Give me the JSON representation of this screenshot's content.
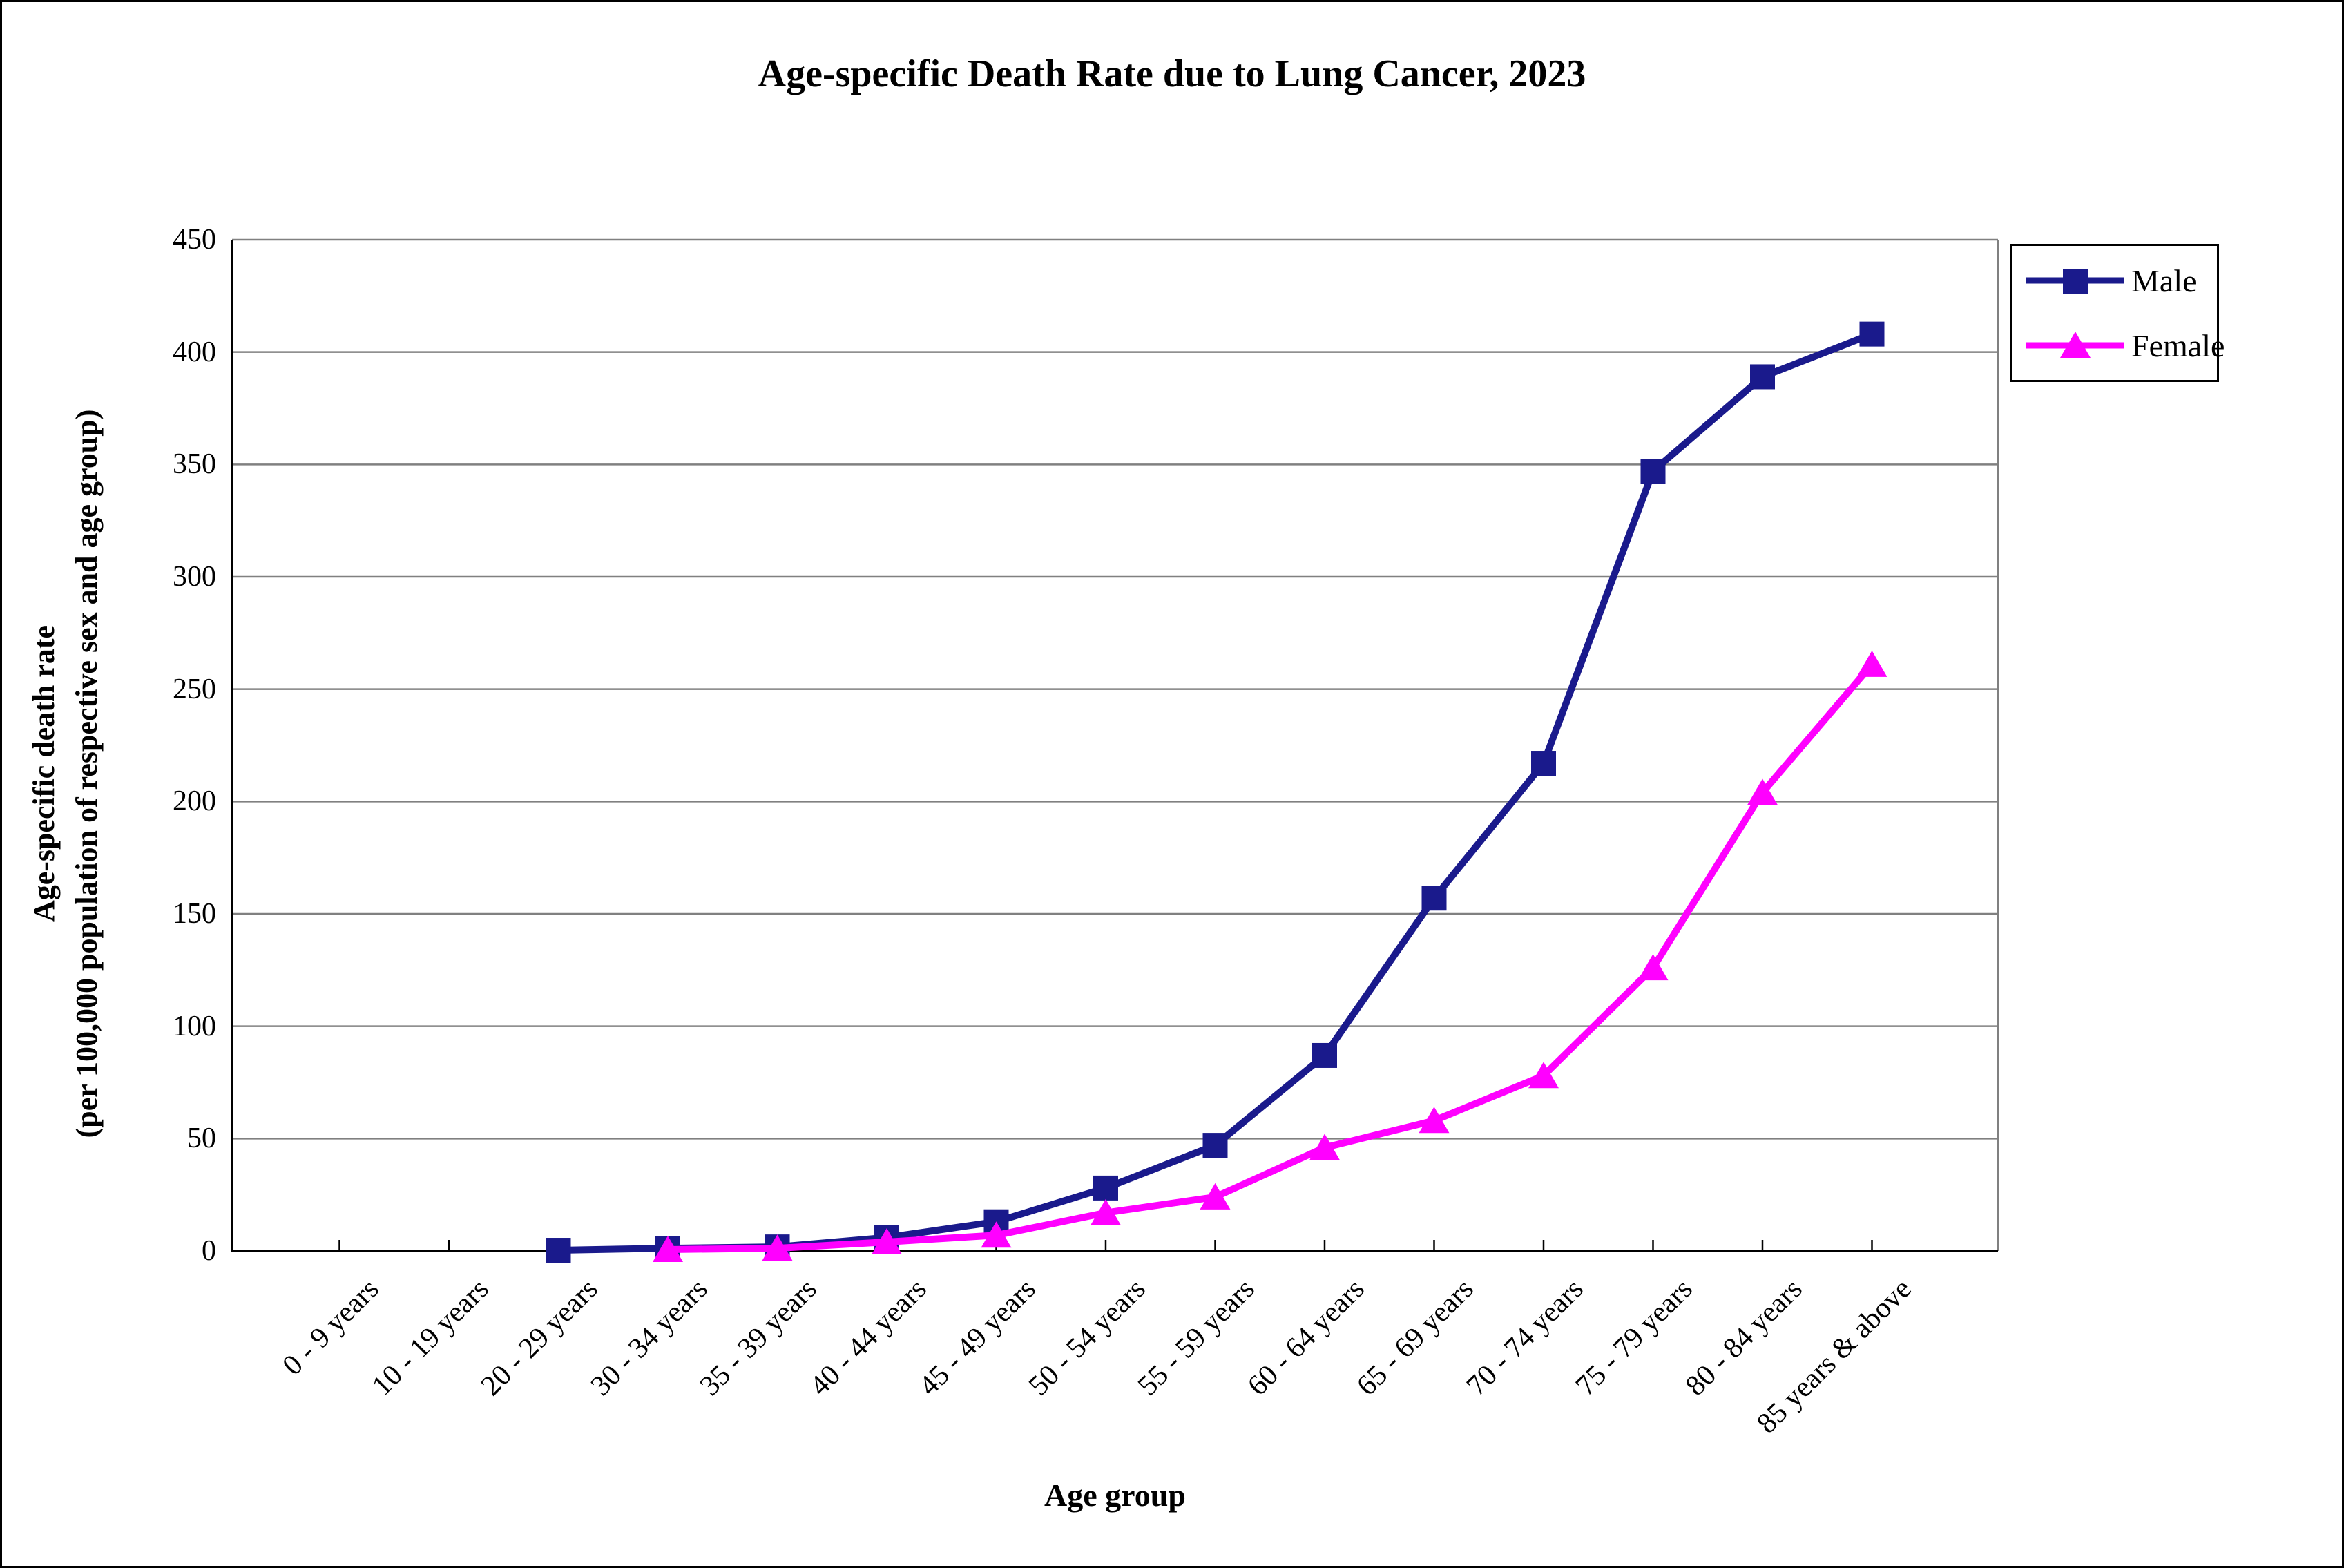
{
  "title": "Age-specific Death Rate due to Lung Cancer, 2023",
  "y_axis": {
    "title_line1": "Age-specific death rate",
    "title_line2": "(per 100,000 population of respective sex and age group)",
    "tick_labels": [
      "0",
      "50",
      "100",
      "150",
      "200",
      "250",
      "300",
      "350",
      "400",
      "450"
    ]
  },
  "x_axis": {
    "title": "Age group"
  },
  "legend": {
    "items": [
      {
        "label": "Male"
      },
      {
        "label": "Female"
      }
    ]
  },
  "chart_data": {
    "type": "line",
    "title": "Age-specific Death Rate due to Lung Cancer, 2023",
    "xlabel": "Age group",
    "ylabel": "Age-specific death rate (per 100,000 population of respective sex and age group)",
    "categories": [
      "0 - 9 years",
      "10 - 19 years",
      "20 - 29 years",
      "30 - 34 years",
      "35 - 39 years",
      "40 - 44 years",
      "45 - 49 years",
      "50 - 54 years",
      "55 - 59 years",
      "60 - 64 years",
      "65 - 69 years",
      "70 - 74 years",
      "75 - 79 years",
      "80 - 84 years",
      "85 years & above"
    ],
    "series": [
      {
        "name": "Male",
        "color": "#1a1a8c",
        "marker": "square",
        "values": [
          null,
          null,
          0.3,
          1.2,
          1.8,
          6,
          13,
          28,
          47,
          87,
          157,
          217,
          347,
          389,
          408
        ]
      },
      {
        "name": "Female",
        "color": "#ff00ff",
        "marker": "triangle",
        "values": [
          null,
          null,
          null,
          0.6,
          1.2,
          4,
          7,
          17,
          24,
          46,
          58,
          78,
          126,
          204,
          261
        ]
      }
    ],
    "ylim": [
      0,
      450
    ],
    "ytick_interval": 50,
    "grid": "horizontal",
    "grid_color": "#808080",
    "axis_color": "#000000",
    "legend_position": "top-right"
  }
}
